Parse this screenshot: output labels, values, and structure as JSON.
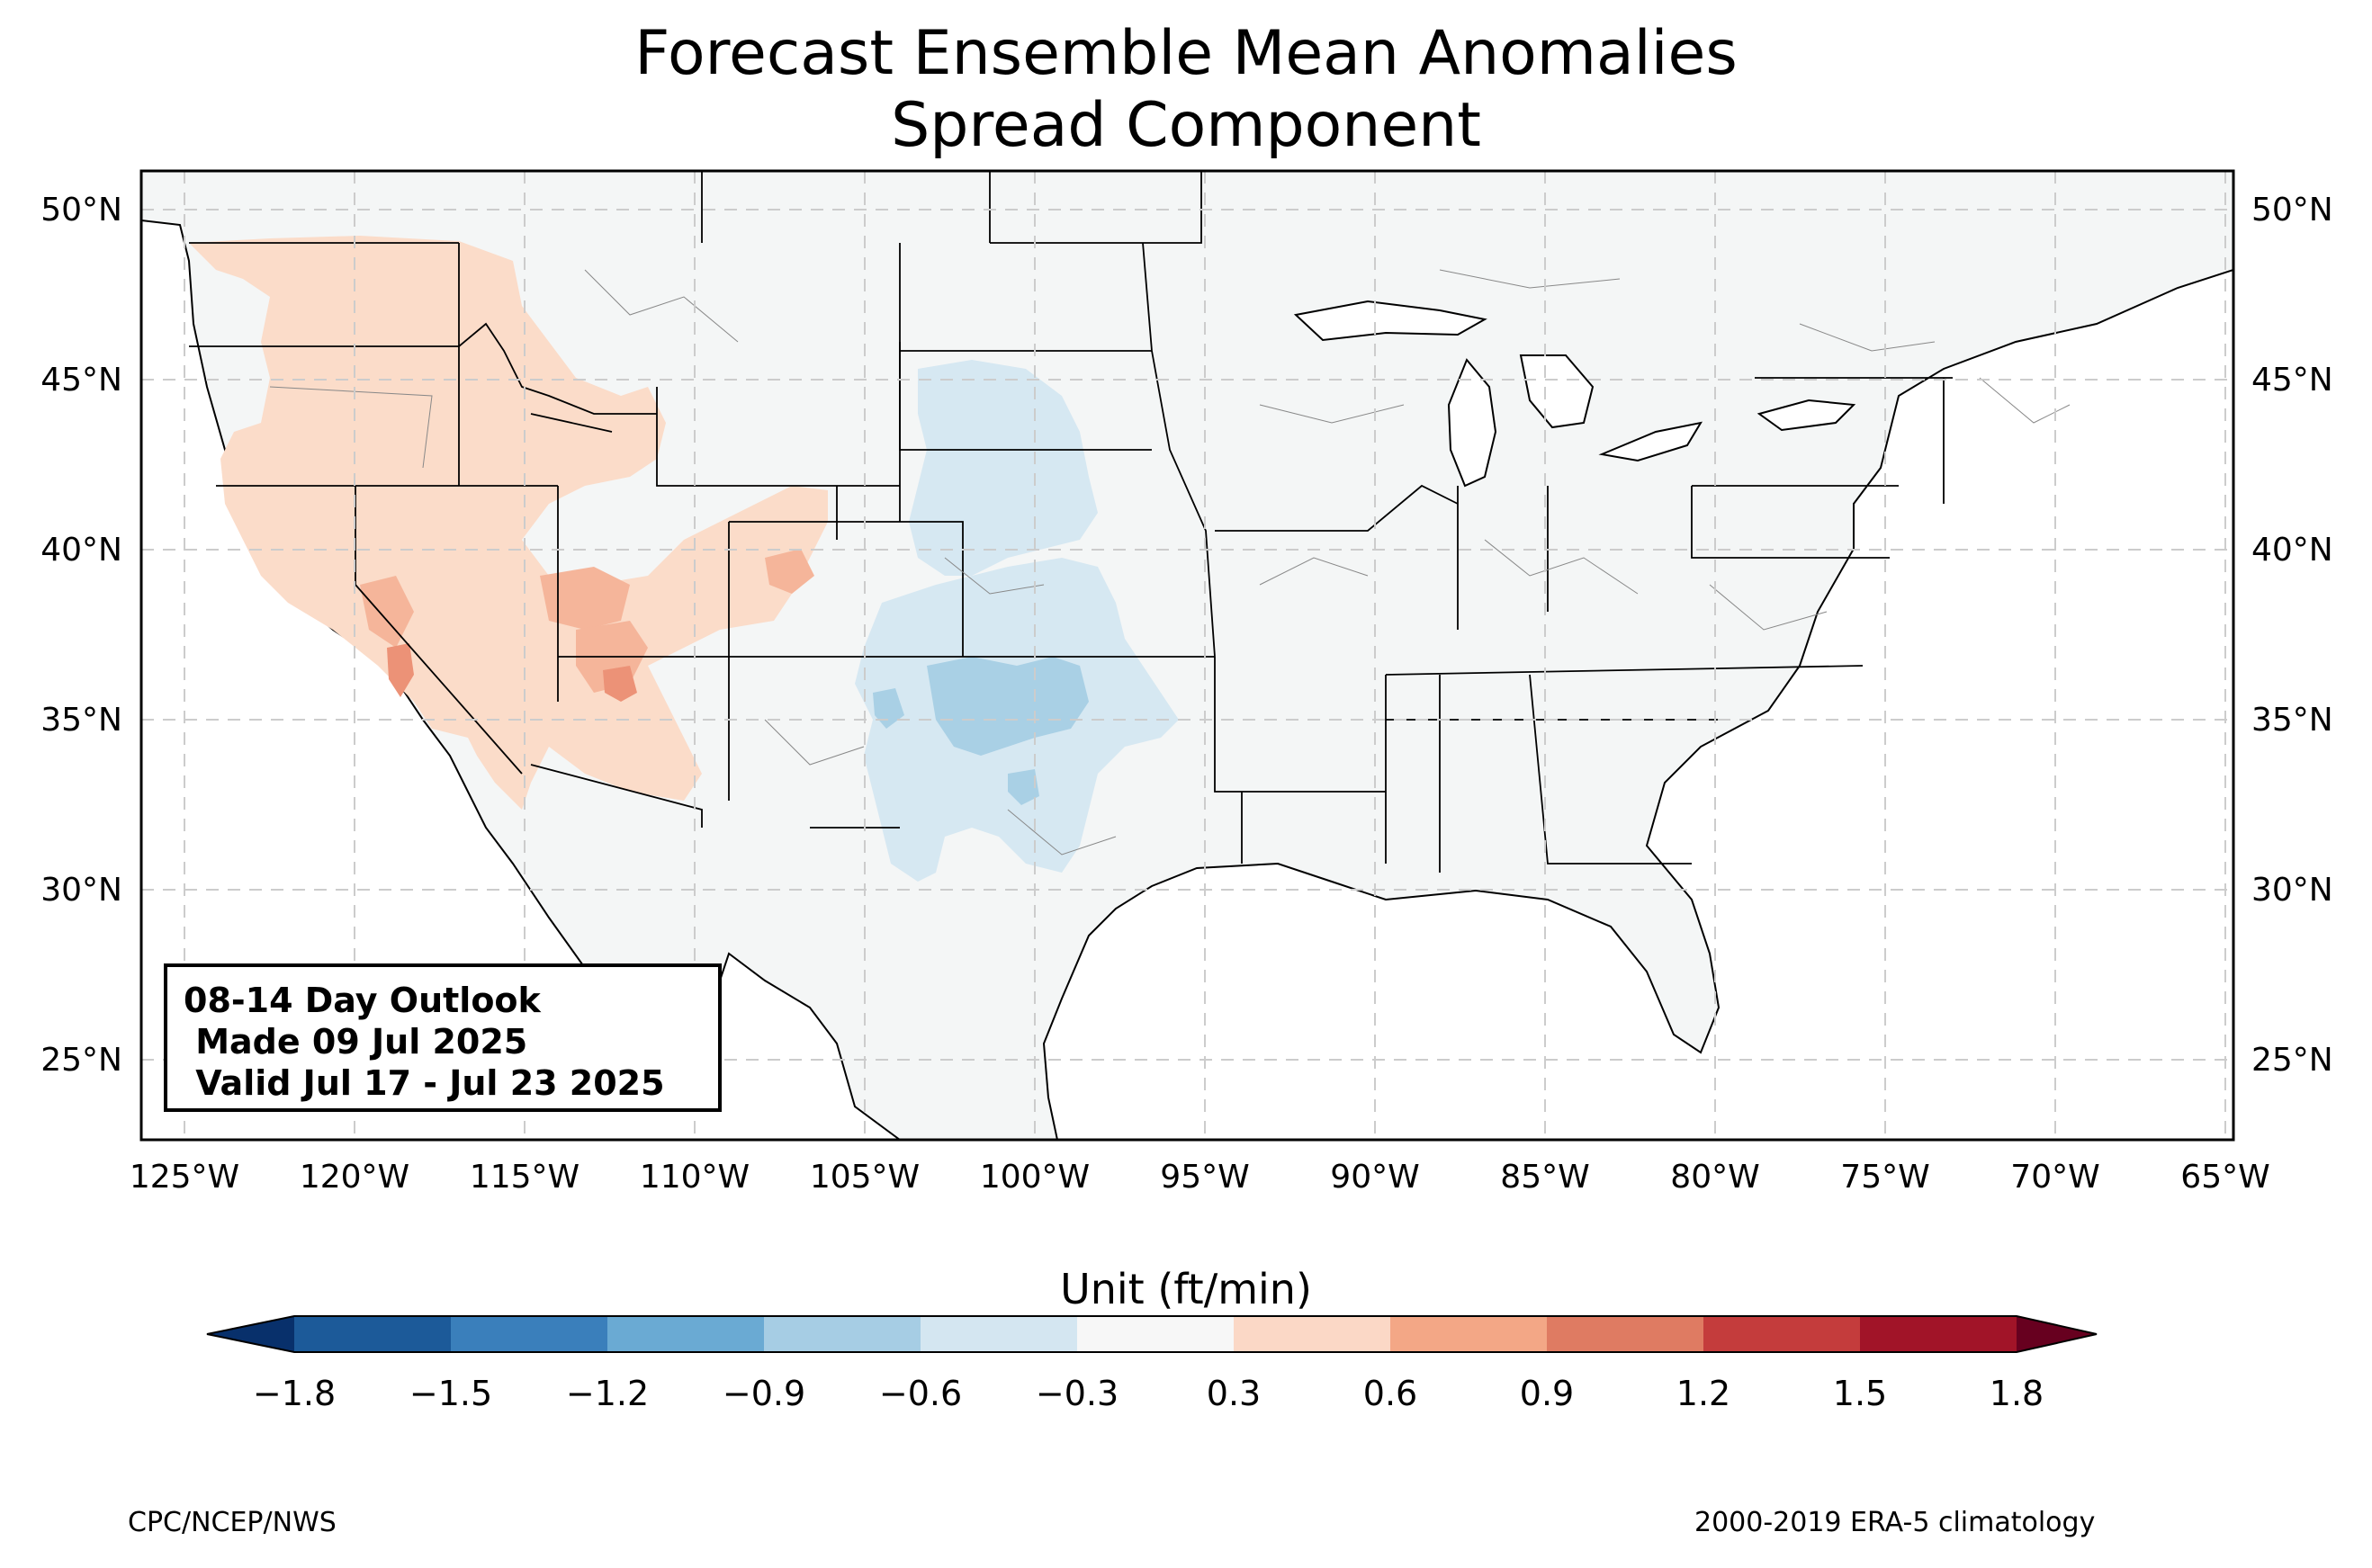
{
  "title": {
    "line1": "Forecast Ensemble Mean Anomalies",
    "line2": "Spread Component"
  },
  "outlook_box": {
    "line1": "08-14 Day Outlook",
    "line2": " Made 09 Jul 2025",
    "line3": " Valid Jul 17 - Jul 23 2025"
  },
  "axes": {
    "latitude_ticks": [
      "50°N",
      "45°N",
      "40°N",
      "35°N",
      "30°N",
      "25°N"
    ],
    "longitude_ticks": [
      "125°W",
      "120°W",
      "115°W",
      "110°W",
      "105°W",
      "100°W",
      "95°W",
      "90°W",
      "85°W",
      "80°W",
      "75°W",
      "70°W",
      "65°W"
    ]
  },
  "colorbar": {
    "label": "Unit (ft/min)",
    "ticks": [
      "−1.8",
      "−1.5",
      "−1.2",
      "−0.9",
      "−0.6",
      "−0.3",
      "0.3",
      "0.6",
      "0.9",
      "1.2",
      "1.5",
      "1.8"
    ],
    "colors": [
      "#08306b",
      "#1c5a99",
      "#3a7fbb",
      "#6aaad3",
      "#a6cde4",
      "#d4e6f1",
      "#f7f7f7",
      "#fbd8c6",
      "#f3a786",
      "#df7b62",
      "#c43c3c",
      "#a11428",
      "#67001f"
    ]
  },
  "map_colors": {
    "land": "#f4f6f6",
    "anomaly_pos_light": "#fbdcc9",
    "anomaly_pos_medium": "#f5b59a",
    "anomaly_pos_strong": "#ec9277",
    "anomaly_neg_light": "#d6e8f2",
    "anomaly_neg_medium": "#a9d0e5"
  },
  "footer": {
    "left": "CPC/NCEP/NWS",
    "right": "2000-2019 ERA-5 climatology"
  }
}
